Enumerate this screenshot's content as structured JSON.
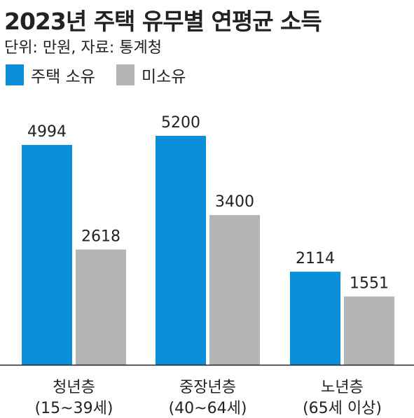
{
  "title": "2023년 주택 유무별 연평균 소득",
  "subtitle": "단위: 만원, 자료: 통계청",
  "chart_data": {
    "type": "bar",
    "title": "2023년 주택 유무별 연평균 소득",
    "subtitle": "단위: 만원, 자료: 통계청",
    "categories": [
      [
        "청년층",
        "(15~39세)"
      ],
      [
        "중장년층",
        "(40~64세)"
      ],
      [
        "노년층",
        "(65세 이상)"
      ]
    ],
    "series": [
      {
        "name": "주택 소유",
        "values": [
          4994,
          5200,
          2114
        ],
        "color": "#0a8fd8"
      },
      {
        "name": "미소유",
        "values": [
          2618,
          3400,
          1551
        ],
        "color": "#b3b4b6"
      }
    ],
    "ylim": [
      0,
      5200
    ],
    "grid": false,
    "legend": "top-left"
  }
}
